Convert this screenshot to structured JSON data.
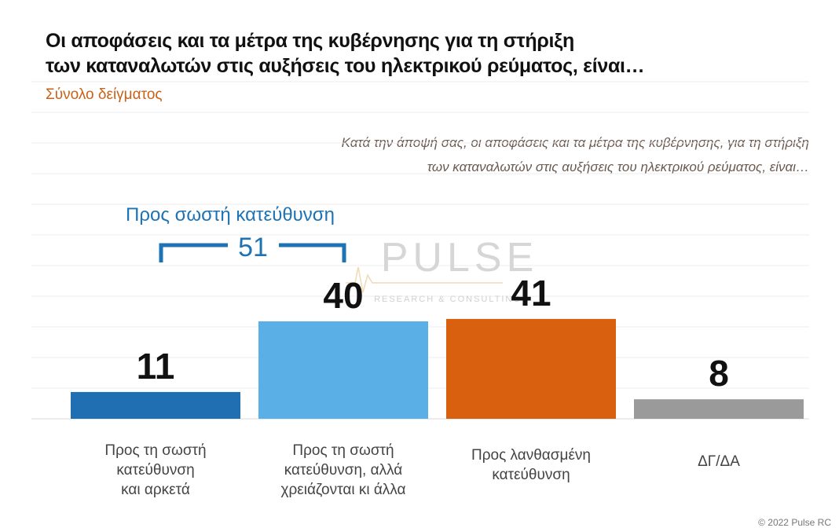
{
  "chart_data": {
    "type": "bar",
    "title": [
      "Οι αποφάσεις και τα μέτρα της κυβέρνησης για τη στήριξη",
      "των καταναλωτών στις αυξήσεις του ηλεκτρικού ρεύματος, είναι…"
    ],
    "subtitle": "Σύνολο δείγματος",
    "question": [
      "Κατά την άποψή σας, οι αποφάσεις και τα μέτρα της κυβέρνησης, για τη στήριξη",
      "των καταναλωτών στις αυξήσεις του ηλεκτρικού ρεύματος, είναι…"
    ],
    "categories": [
      [
        "Προς τη σωστή",
        "κατεύθυνση",
        "και αρκετά"
      ],
      [
        "Προς τη σωστή",
        "κατεύθυνση, αλλά",
        "χρειάζονται κι άλλα"
      ],
      [
        "Προς λανθασμένη",
        "κατεύθυνση"
      ],
      [
        "ΔΓ/ΔΑ"
      ]
    ],
    "values": [
      11,
      40,
      41,
      8
    ],
    "colors": [
      "#1f6fb2",
      "#5ab0e6",
      "#d8600f",
      "#9a9a9a"
    ],
    "ylim": [
      0,
      45
    ],
    "grid": true,
    "annotation": {
      "label": "Προς σωστή κατεύθυνση",
      "value": "51",
      "spans": [
        0,
        1
      ],
      "color": "#1e73b4"
    }
  },
  "watermark": {
    "brand": "PULSE",
    "tagline": "RESEARCH & CONSULTING"
  },
  "copyright": "© 2022 Pulse RC"
}
